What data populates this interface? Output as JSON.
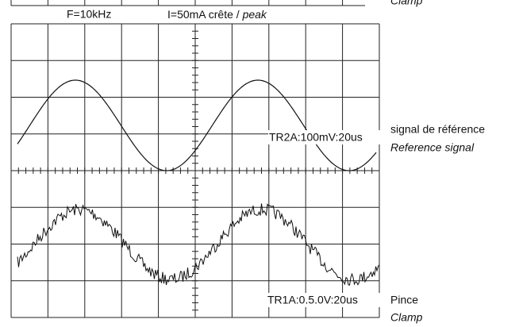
{
  "header": {
    "frequency": "F=10kHz",
    "current": "I=50mA crête / ",
    "current_italic": "peak"
  },
  "top_label": "Clamp",
  "trace_2": {
    "setting": "TR2A:100mV:20us",
    "label": "signal de référence",
    "label_italic": "Reference signal"
  },
  "trace_1": {
    "setting": "TR1A:0.5.0V:20us",
    "label": "Pince",
    "label_italic": "Clamp"
  }
}
